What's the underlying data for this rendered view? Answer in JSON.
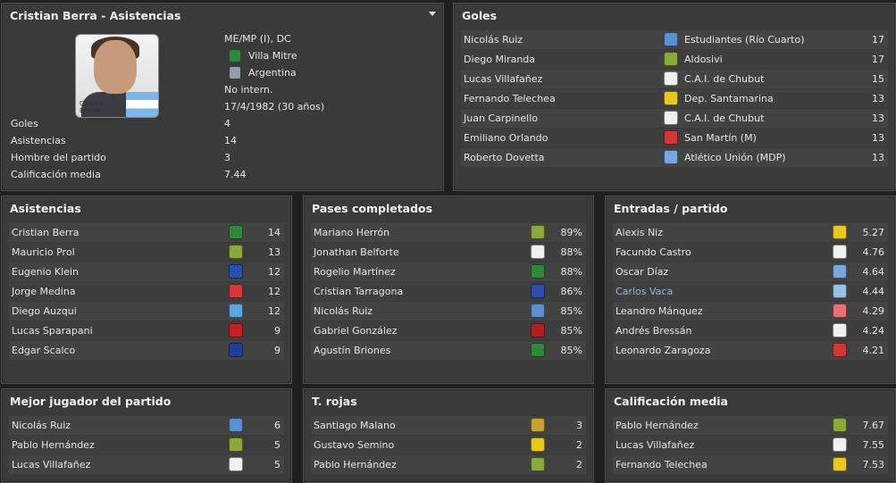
{
  "profile": {
    "title": "Cristian Berra - Asistencias",
    "photo_caption_first": "Cristian",
    "photo_caption_last": "BERRA",
    "position": "ME/MP (I), DC",
    "club": "Villa Mitre",
    "nation": "Argentina",
    "intl": "No intern.",
    "born": "17/4/1982 (30 años)",
    "stats": [
      {
        "label": "Goles",
        "value": "4"
      },
      {
        "label": "Asistencias",
        "value": "14"
      },
      {
        "label": "Hombre del partido",
        "value": "3"
      },
      {
        "label": "Calificación media",
        "value": "7.44"
      }
    ]
  },
  "goles": {
    "title": "Goles",
    "rows": [
      {
        "name": "Nicolás Ruiz",
        "team": "Estudiantes (Río Cuarto)",
        "value": "17",
        "color": "#5a8fd0"
      },
      {
        "name": "Diego Miranda",
        "team": "Aldosivi",
        "value": "17",
        "color": "#8aa93a"
      },
      {
        "name": "Lucas Villafañez",
        "team": "C.A.I. de Chubut",
        "value": "15",
        "color": "#f0f0f0"
      },
      {
        "name": "Fernando Telechea",
        "team": "Dep. Santamarina",
        "value": "13",
        "color": "#e8c820"
      },
      {
        "name": "Juan Carpinello",
        "team": "C.A.I. de Chubut",
        "value": "13",
        "color": "#f0f0f0"
      },
      {
        "name": "Emiliano Orlando",
        "team": "San Martín (M)",
        "value": "13",
        "color": "#d33838"
      },
      {
        "name": "Roberto Dovetta",
        "team": "Atlético Unión (MDP)",
        "value": "13",
        "color": "#7aa6e0"
      }
    ]
  },
  "asistencias": {
    "title": "Asistencias",
    "rows": [
      {
        "name": "Cristian Berra",
        "value": "14",
        "color": "#2e8a3a"
      },
      {
        "name": "Mauricio Prol",
        "value": "13",
        "color": "#8aa93a"
      },
      {
        "name": "Eugenio Klein",
        "value": "12",
        "color": "#2b4fb0"
      },
      {
        "name": "Jorge Medina",
        "value": "12",
        "color": "#d33838"
      },
      {
        "name": "Diego Auzqui",
        "value": "12",
        "color": "#5aa7e0"
      },
      {
        "name": "Lucas Sparapani",
        "value": "9",
        "color": "#c82020"
      },
      {
        "name": "Edgar Scalco",
        "value": "9",
        "color": "#1f3f9a"
      }
    ]
  },
  "pases": {
    "title": "Pases completados",
    "rows": [
      {
        "name": "Mariano Herrón",
        "value": "89%",
        "color": "#8aa93a"
      },
      {
        "name": "Jonathan Belforte",
        "value": "88%",
        "color": "#f0f0f0"
      },
      {
        "name": "Rogelio Martínez",
        "value": "88%",
        "color": "#2e8a3a"
      },
      {
        "name": "Cristian Tarragona",
        "value": "86%",
        "color": "#2b4fb0"
      },
      {
        "name": "Nicolás Ruiz",
        "value": "85%",
        "color": "#5a8fd0"
      },
      {
        "name": "Gabriel González",
        "value": "85%",
        "color": "#b02020"
      },
      {
        "name": "Agustín Briones",
        "value": "85%",
        "color": "#2e8a3a"
      }
    ]
  },
  "entradas": {
    "title": "Entradas / partido",
    "rows": [
      {
        "name": "Alexis Niz",
        "value": "5.27",
        "color": "#e8c820",
        "link": false
      },
      {
        "name": "Facundo Castro",
        "value": "4.76",
        "color": "#f0f0f0",
        "link": false
      },
      {
        "name": "Oscar Díaz",
        "value": "4.64",
        "color": "#7aa6e0",
        "link": false
      },
      {
        "name": "Carlos Vaca",
        "value": "4.44",
        "color": "#9ac0e8",
        "link": true
      },
      {
        "name": "Leandro Mánquez",
        "value": "4.29",
        "color": "#e87070",
        "link": false
      },
      {
        "name": "Andrés Bressán",
        "value": "4.24",
        "color": "#f0f0f0",
        "link": false
      },
      {
        "name": "Leonardo Zaragoza",
        "value": "4.21",
        "color": "#d33838",
        "link": false
      }
    ]
  },
  "mejor": {
    "title": "Mejor jugador del partido",
    "rows": [
      {
        "name": "Nicolás Ruiz",
        "value": "6",
        "color": "#5a8fd0"
      },
      {
        "name": "Pablo Hernández",
        "value": "5",
        "color": "#8aa93a"
      },
      {
        "name": "Lucas Villafañez",
        "value": "5",
        "color": "#f0f0f0"
      }
    ]
  },
  "rojas": {
    "title": "T. rojas",
    "rows": [
      {
        "name": "Santiago Malano",
        "value": "3",
        "color": "#c8a030"
      },
      {
        "name": "Gustavo Semino",
        "value": "2",
        "color": "#e8c820"
      },
      {
        "name": "Pablo Hernández",
        "value": "2",
        "color": "#8aa93a"
      }
    ]
  },
  "calif": {
    "title": "Calificación media",
    "rows": [
      {
        "name": "Pablo Hernández",
        "value": "7.67",
        "color": "#8aa93a"
      },
      {
        "name": "Lucas Villafañez",
        "value": "7.55",
        "color": "#f0f0f0"
      },
      {
        "name": "Fernando Telechea",
        "value": "7.53",
        "color": "#e8c820"
      }
    ]
  }
}
